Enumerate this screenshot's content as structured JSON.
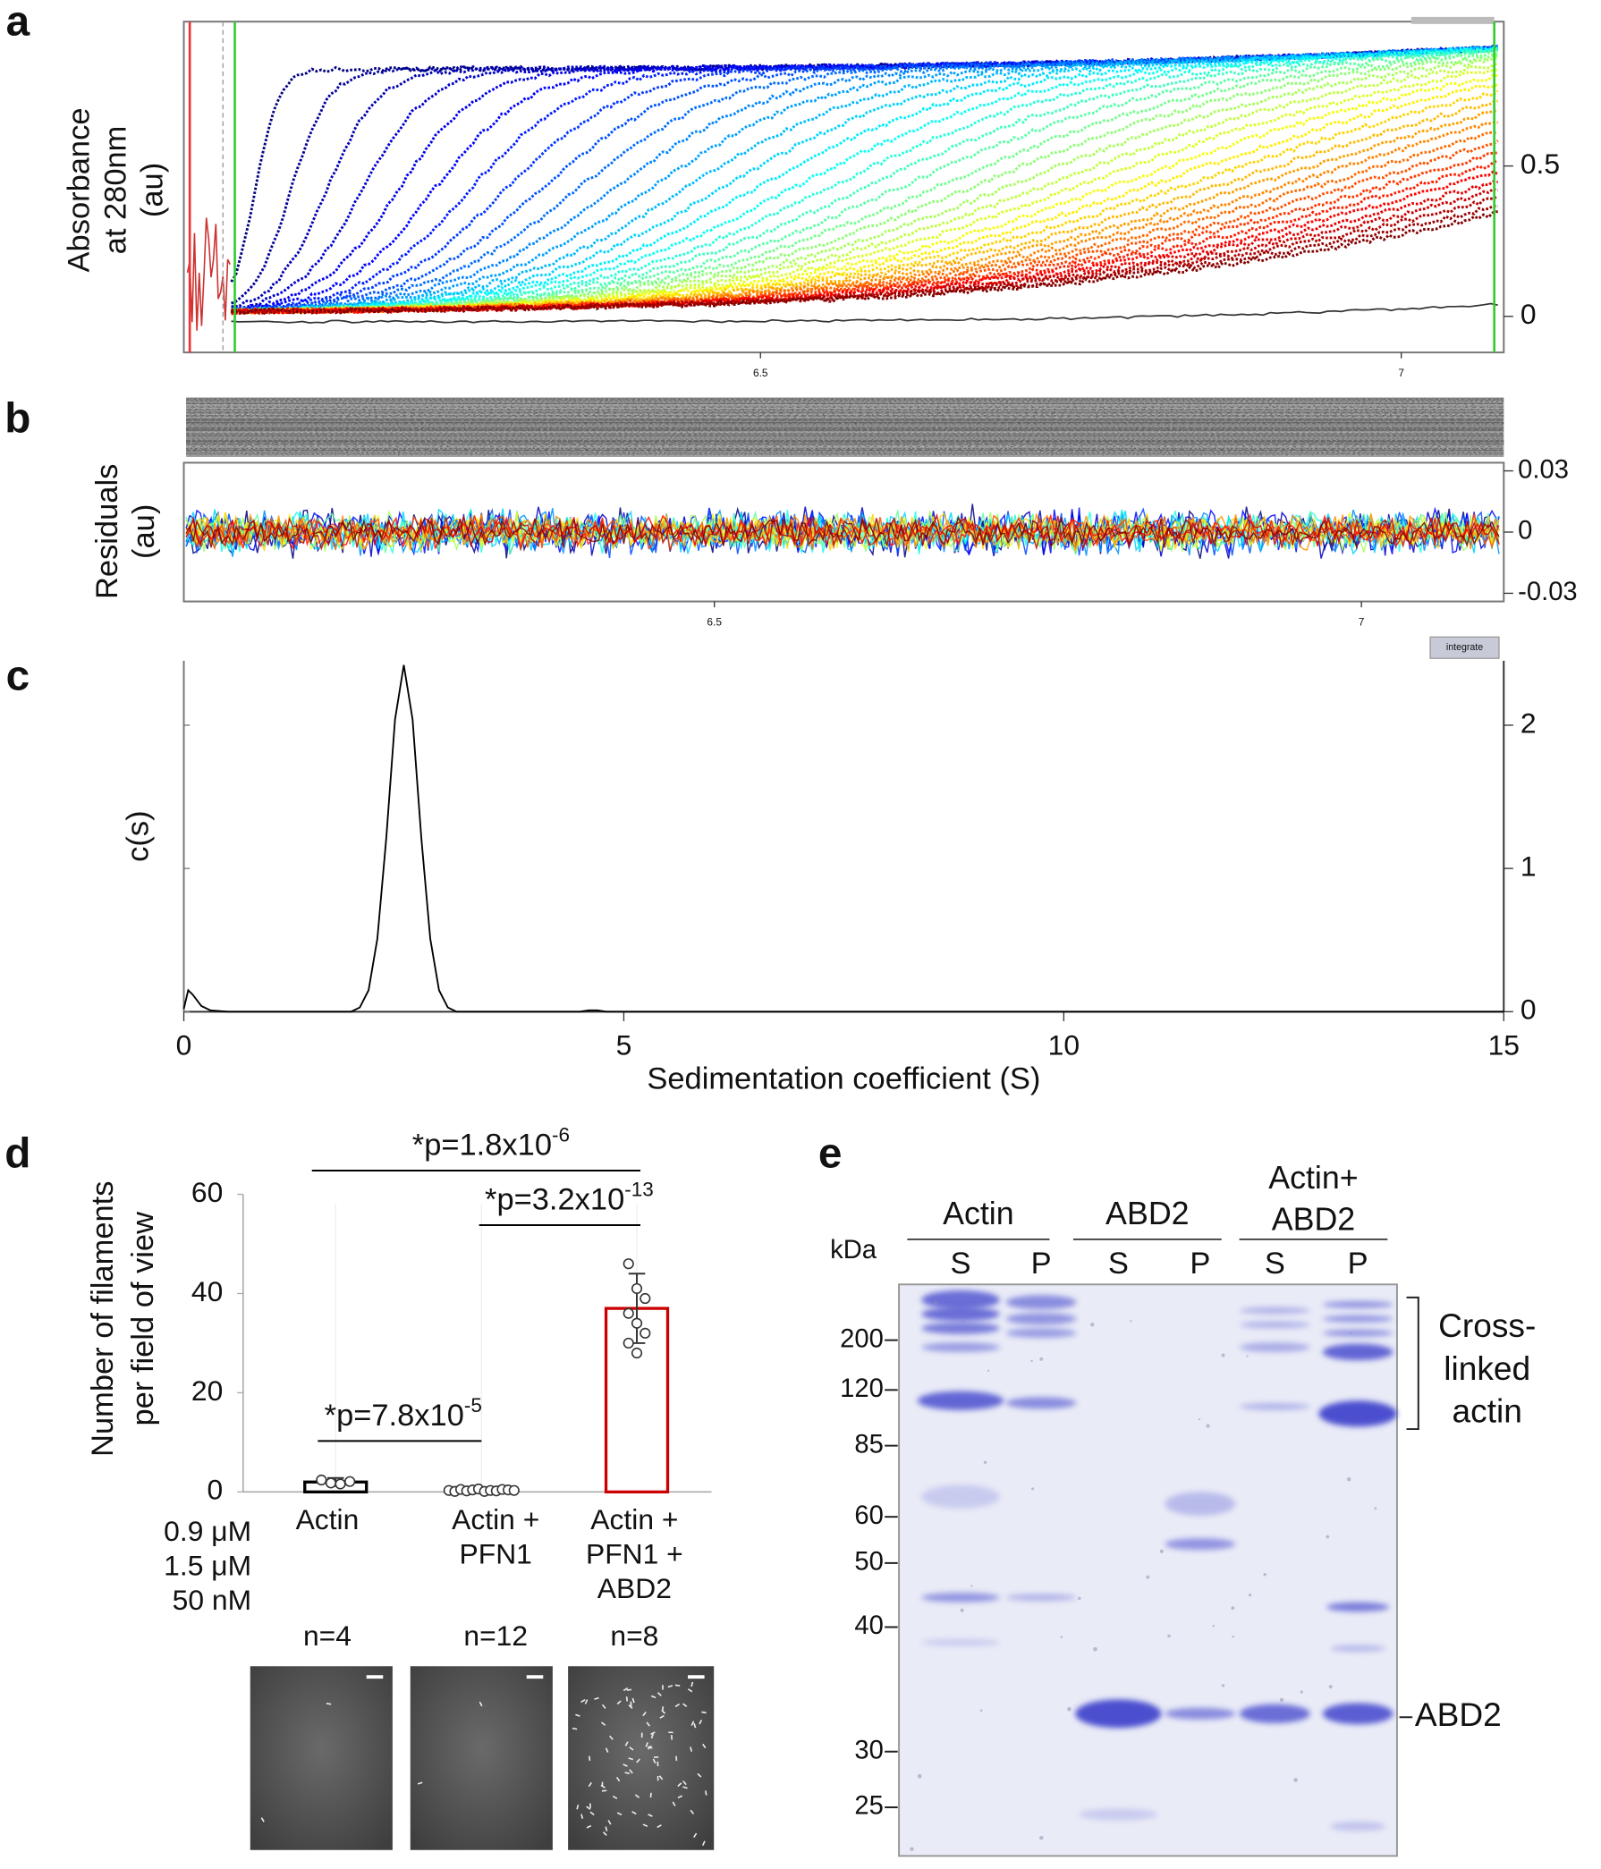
{
  "chart_data": [
    {
      "panel": "a",
      "type": "line",
      "y_label": [
        "Absorbance",
        "at 280nm",
        "(au)"
      ],
      "xlim": [
        6.05,
        7.08
      ],
      "xticks": [
        6.5,
        7
      ],
      "ylim": [
        -0.12,
        0.98
      ],
      "yticks": [
        0,
        0.5
      ]
    },
    {
      "panel": "b",
      "type": "line",
      "y_label": [
        "Residuals",
        "(au)"
      ],
      "xlim": [
        6.09,
        7.11
      ],
      "xticks": [
        6.5,
        7
      ],
      "ylim": [
        -0.034,
        0.034
      ],
      "yticks": [
        -0.03,
        0,
        0.03
      ]
    },
    {
      "panel": "c",
      "type": "line",
      "y_label": "c(s)",
      "x_label": "Sedimentation coefficient (S)",
      "button": "integrate",
      "x": [
        0,
        0.05,
        0.1,
        0.2,
        0.3,
        0.5,
        1.9,
        2.0,
        2.1,
        2.2,
        2.3,
        2.4,
        2.5,
        2.6,
        2.7,
        2.8,
        2.9,
        3.0,
        3.1,
        4.5,
        4.6,
        4.7,
        4.8,
        15
      ],
      "values": [
        0.02,
        0.15,
        0.12,
        0.04,
        0.01,
        0,
        0,
        0.03,
        0.15,
        0.51,
        1.21,
        2.04,
        2.42,
        2.04,
        1.21,
        0.51,
        0.15,
        0.03,
        0,
        0,
        0.01,
        0.01,
        0,
        0
      ],
      "color": "#000000",
      "xlim": [
        0,
        15
      ],
      "xticks": [
        0,
        5,
        10,
        15
      ],
      "ylim": [
        0,
        2.45
      ],
      "yticks": [
        0,
        1,
        2
      ]
    },
    {
      "panel": "d",
      "type": "bar",
      "y_label": [
        "Number of filaments",
        "per field of view"
      ],
      "categories": [
        [
          "Actin"
        ],
        [
          "Actin +",
          "PFN1"
        ],
        [
          "Actin +",
          "PFN1 +",
          "ABD2"
        ]
      ],
      "values": [
        2,
        0.3,
        37
      ],
      "errors": [
        0.8,
        0.3,
        7
      ],
      "points": [
        [
          2.4,
          1.8,
          1.6,
          2.1
        ],
        [
          0.3,
          0.1,
          0.5,
          0.2,
          0.4,
          0.6,
          0.1,
          0.3,
          0.2,
          0.5,
          0.4,
          0.3
        ],
        [
          46,
          41,
          39,
          36,
          34,
          32,
          30,
          28
        ]
      ],
      "colors": [
        "#000000",
        "#000000",
        "#cc0000"
      ],
      "ylim": [
        0,
        60
      ],
      "yticks": [
        0,
        20,
        40,
        60
      ],
      "conditions": [
        "0.9 μM",
        "1.5 μM",
        "50 nM"
      ],
      "n_labels": [
        "n=4",
        "n=12",
        "n=8"
      ],
      "comparisons": [
        {
          "text": "*p=7.8x10",
          "exponent": "-5"
        },
        {
          "text": "*p=3.2x10",
          "exponent": "-13"
        },
        {
          "text": "*p=1.8x10",
          "exponent": "-6"
        }
      ]
    }
  ],
  "gel": {
    "panel": "e",
    "unit": "kDa",
    "groups": [
      [
        "Actin"
      ],
      [
        "ABD2"
      ],
      [
        "Actin+",
        "ABD2"
      ]
    ],
    "lanes": [
      "S",
      "P",
      "S",
      "P",
      "S",
      "P"
    ],
    "markers": [
      200,
      120,
      85,
      60,
      50,
      40,
      30,
      25
    ],
    "annotations": [
      [
        "Cross-",
        "linked",
        "actin"
      ],
      [
        "ABD2"
      ]
    ]
  }
}
